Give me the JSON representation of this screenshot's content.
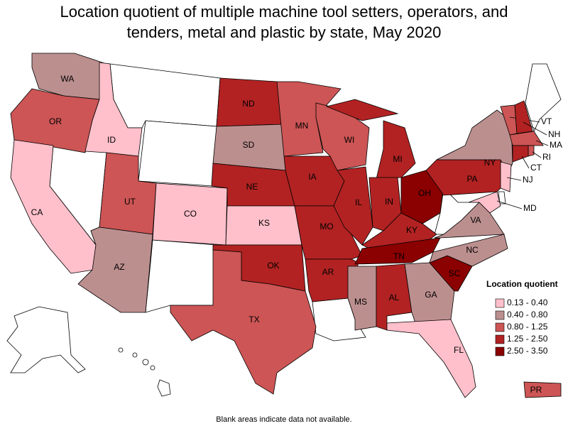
{
  "title": "Location quotient of multiple machine tool setters, operators, and tenders, metal and plastic by state, May 2020",
  "legend": {
    "title": "Location quotient",
    "items": [
      {
        "label": "0.13 - 0.40",
        "color": "#ffc0cb"
      },
      {
        "label": "0.40 - 0.80",
        "color": "#bc8f8f"
      },
      {
        "label": "0.80 - 1.25",
        "color": "#cd5555"
      },
      {
        "label": "1.25 - 2.50",
        "color": "#b22222"
      },
      {
        "label": "2.50 - 3.50",
        "color": "#8b0000"
      }
    ]
  },
  "states": [
    {
      "label": "WA",
      "class": 1
    },
    {
      "label": "OR",
      "class": 2
    },
    {
      "label": "CA",
      "class": 0
    },
    {
      "label": "ID",
      "class": 0
    },
    {
      "label": "UT",
      "class": 2
    },
    {
      "label": "AZ",
      "class": 1
    },
    {
      "label": "CO",
      "class": 0
    },
    {
      "label": "ND",
      "class": 3
    },
    {
      "label": "SD",
      "class": 1
    },
    {
      "label": "NE",
      "class": 3
    },
    {
      "label": "KS",
      "class": 0
    },
    {
      "label": "OK",
      "class": 3
    },
    {
      "label": "TX",
      "class": 2
    },
    {
      "label": "MN",
      "class": 2
    },
    {
      "label": "IA",
      "class": 3
    },
    {
      "label": "MO",
      "class": 3
    },
    {
      "label": "AR",
      "class": 3
    },
    {
      "label": "WI",
      "class": 2
    },
    {
      "label": "IL",
      "class": 3
    },
    {
      "label": "MI",
      "class": 3
    },
    {
      "label": "IN",
      "class": 3
    },
    {
      "label": "OH",
      "class": 4
    },
    {
      "label": "KY",
      "class": 3
    },
    {
      "label": "TN",
      "class": 4
    },
    {
      "label": "MS",
      "class": 1
    },
    {
      "label": "AL",
      "class": 3
    },
    {
      "label": "GA",
      "class": 1
    },
    {
      "label": "FL",
      "class": 0
    },
    {
      "label": "SC",
      "class": 4
    },
    {
      "label": "NC",
      "class": 1
    },
    {
      "label": "VA",
      "class": 1
    },
    {
      "label": "PA",
      "class": 3
    },
    {
      "label": "NY",
      "class": 1
    },
    {
      "label": "VT",
      "class": 2
    },
    {
      "label": "NH",
      "class": 3
    },
    {
      "label": "MA",
      "class": 2
    },
    {
      "label": "RI",
      "class": 2
    },
    {
      "label": "CT",
      "class": 3
    },
    {
      "label": "NJ",
      "class": 0
    },
    {
      "label": "MD",
      "class": 0
    },
    {
      "label": "PR",
      "class": 2
    }
  ],
  "footnote": "Blank areas indicate data not available."
}
